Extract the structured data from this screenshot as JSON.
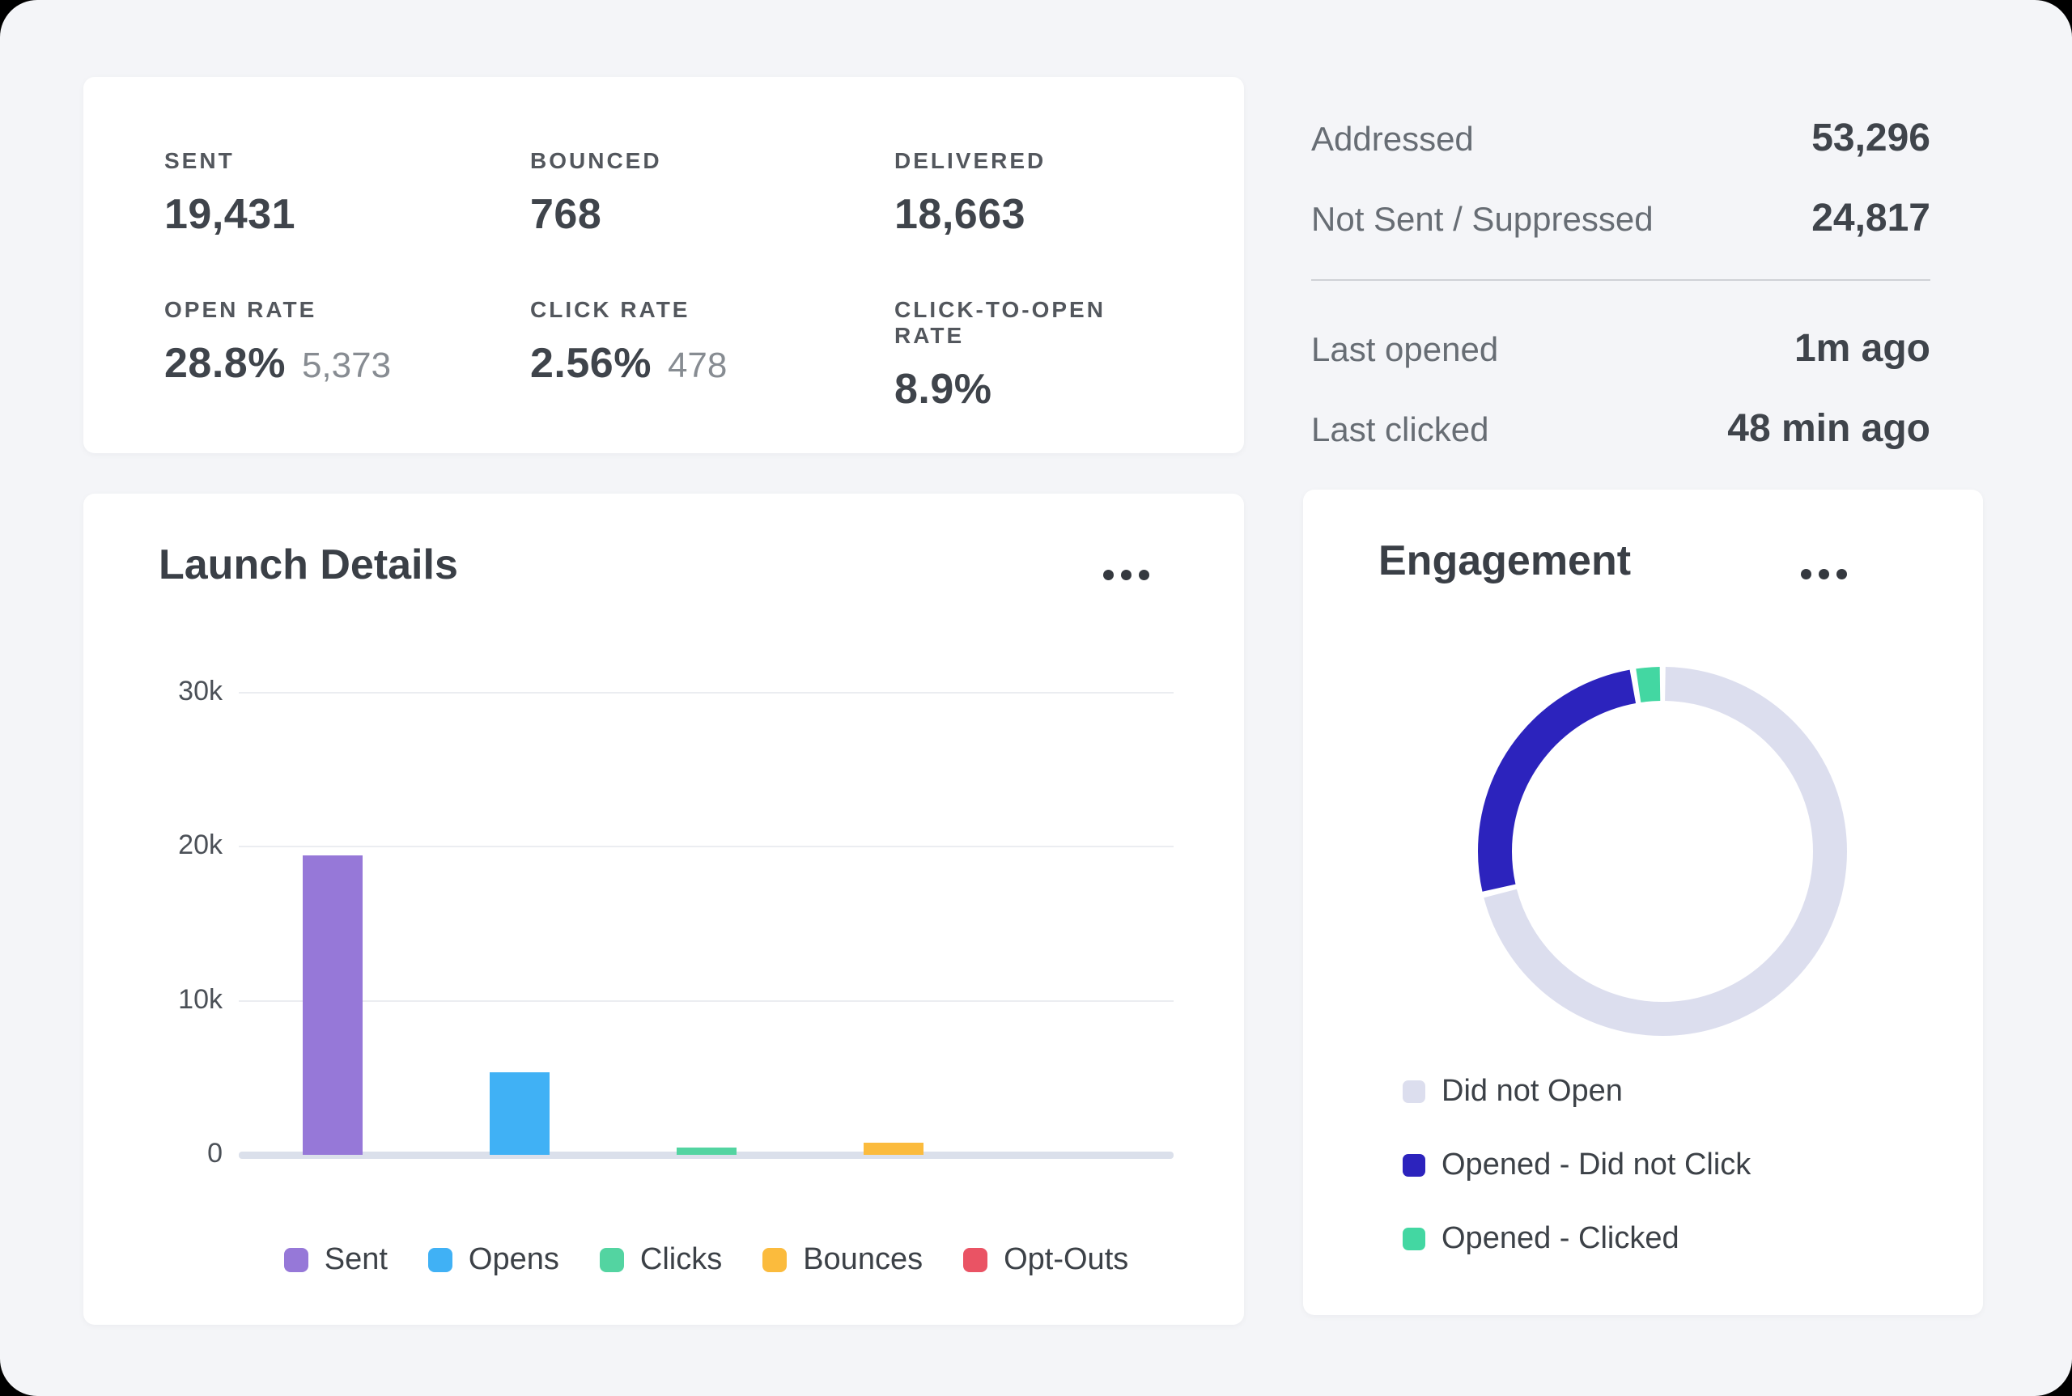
{
  "stats_card": {
    "items": [
      {
        "label": "SENT",
        "value": "19,431",
        "secondary": ""
      },
      {
        "label": "BOUNCED",
        "value": "768",
        "secondary": ""
      },
      {
        "label": "DELIVERED",
        "value": "18,663",
        "secondary": ""
      },
      {
        "label": "OPEN RATE",
        "value": "28.8%",
        "secondary": "5,373"
      },
      {
        "label": "CLICK RATE",
        "value": "2.56%",
        "secondary": "478"
      },
      {
        "label": "CLICK-TO-OPEN RATE",
        "value": "8.9%",
        "secondary": ""
      }
    ]
  },
  "summary_panel": {
    "rows_top": [
      {
        "label": "Addressed",
        "value": "53,296"
      },
      {
        "label": "Not Sent / Suppressed",
        "value": "24,817"
      }
    ],
    "rows_bottom": [
      {
        "label": "Last opened",
        "value": "1m ago"
      },
      {
        "label": "Last clicked",
        "value": "48 min ago"
      }
    ]
  },
  "launch_card": {
    "title": "Launch Details"
  },
  "engagement_card": {
    "title": "Engagement"
  },
  "chart_data": [
    {
      "type": "bar",
      "title": "Launch Details",
      "categories": [
        "Sent",
        "Opens",
        "Clicks",
        "Bounces",
        "Opt-Outs"
      ],
      "values": [
        19431,
        5373,
        478,
        768,
        0
      ],
      "colors": [
        "#9678d8",
        "#40b1f5",
        "#53d4a1",
        "#fbbb3d",
        "#ea5364"
      ],
      "xlabel": "",
      "ylabel": "",
      "ylim": [
        0,
        30000
      ],
      "yticks": [
        "30k",
        "20k",
        "10k",
        "0"
      ],
      "grid": "horizontal",
      "legend_position": "bottom"
    },
    {
      "type": "pie",
      "title": "Engagement",
      "labels": [
        "Did not Open",
        "Opened - Did not Click",
        "Opened - Clicked"
      ],
      "values": [
        71.2,
        26.2,
        2.6
      ],
      "unit": "percent",
      "colors": [
        "#dcdeee",
        "#2c23bd",
        "#43d7a2"
      ],
      "donut": true,
      "start_angle_deg": 0,
      "direction": "clockwise",
      "legend_position": "bottom-left"
    }
  ]
}
